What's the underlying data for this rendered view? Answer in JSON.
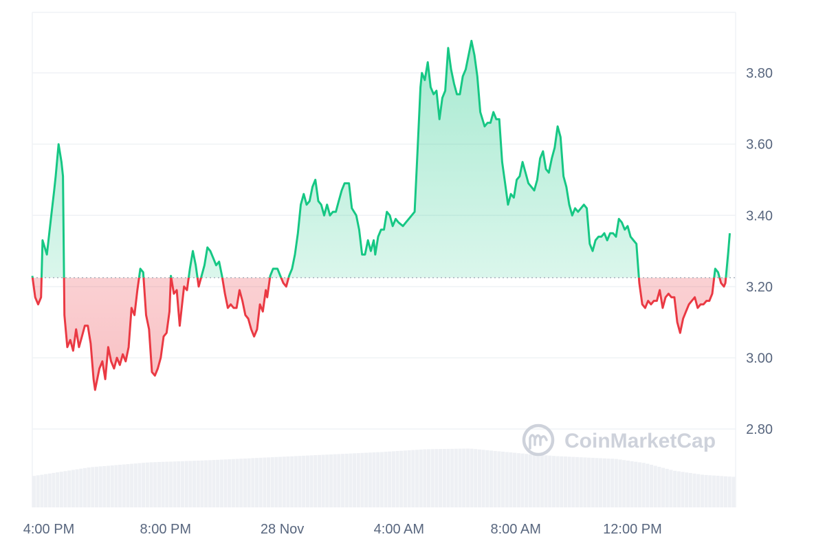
{
  "watermark": "CoinMarketCap",
  "colors": {
    "up": "#16c784",
    "down": "#ea3943",
    "grid": "#eff2f5",
    "label": "#58667e",
    "volume": "#eef0f4",
    "baseline": "#9aa3b1"
  },
  "chart_data": {
    "type": "line",
    "title": "",
    "xlabel": "",
    "ylabel": "",
    "ylim": [
      2.58,
      3.97
    ],
    "y_ticks": [
      2.8,
      3.0,
      3.2,
      3.4,
      3.6,
      3.8
    ],
    "y_tick_labels": [
      "2.80",
      "3.00",
      "3.20",
      "3.40",
      "3.60",
      "3.80"
    ],
    "x_ticks": [
      {
        "label": "4:00 PM",
        "hour": 0
      },
      {
        "label": "8:00 PM",
        "hour": 4
      },
      {
        "label": "28 Nov",
        "hour": 8
      },
      {
        "label": "4:00 AM",
        "hour": 12
      },
      {
        "label": "8:00 AM",
        "hour": 16
      },
      {
        "label": "12:00 PM",
        "hour": 20
      }
    ],
    "x_unit": "hours after 4:00 PM",
    "xlim": [
      0,
      24.1
    ],
    "baseline": 3.225,
    "grid": true,
    "legend": "none",
    "price": [
      [
        0.0,
        3.23
      ],
      [
        0.1,
        3.17
      ],
      [
        0.2,
        3.15
      ],
      [
        0.3,
        3.17
      ],
      [
        0.35,
        3.33
      ],
      [
        0.5,
        3.29
      ],
      [
        0.65,
        3.4
      ],
      [
        0.75,
        3.47
      ],
      [
        0.8,
        3.51
      ],
      [
        0.9,
        3.6
      ],
      [
        1.0,
        3.55
      ],
      [
        1.05,
        3.51
      ],
      [
        1.1,
        3.12
      ],
      [
        1.2,
        3.03
      ],
      [
        1.3,
        3.05
      ],
      [
        1.4,
        3.02
      ],
      [
        1.5,
        3.08
      ],
      [
        1.6,
        3.03
      ],
      [
        1.7,
        3.06
      ],
      [
        1.8,
        3.09
      ],
      [
        1.9,
        3.09
      ],
      [
        2.0,
        3.04
      ],
      [
        2.1,
        2.94
      ],
      [
        2.15,
        2.91
      ],
      [
        2.3,
        2.97
      ],
      [
        2.4,
        2.99
      ],
      [
        2.5,
        2.94
      ],
      [
        2.6,
        3.03
      ],
      [
        2.7,
        2.99
      ],
      [
        2.8,
        2.97
      ],
      [
        2.9,
        3.0
      ],
      [
        3.0,
        2.98
      ],
      [
        3.1,
        3.01
      ],
      [
        3.2,
        2.99
      ],
      [
        3.3,
        3.03
      ],
      [
        3.4,
        3.14
      ],
      [
        3.5,
        3.12
      ],
      [
        3.6,
        3.19
      ],
      [
        3.7,
        3.25
      ],
      [
        3.8,
        3.24
      ],
      [
        3.9,
        3.12
      ],
      [
        4.0,
        3.08
      ],
      [
        4.1,
        2.96
      ],
      [
        4.2,
        2.95
      ],
      [
        4.3,
        2.97
      ],
      [
        4.4,
        3.0
      ],
      [
        4.5,
        3.06
      ],
      [
        4.6,
        3.07
      ],
      [
        4.7,
        3.13
      ],
      [
        4.75,
        3.23
      ],
      [
        4.85,
        3.18
      ],
      [
        4.95,
        3.19
      ],
      [
        5.05,
        3.09
      ],
      [
        5.2,
        3.2
      ],
      [
        5.3,
        3.19
      ],
      [
        5.4,
        3.25
      ],
      [
        5.5,
        3.3
      ],
      [
        5.6,
        3.26
      ],
      [
        5.7,
        3.2
      ],
      [
        5.8,
        3.23
      ],
      [
        5.9,
        3.26
      ],
      [
        6.0,
        3.31
      ],
      [
        6.1,
        3.3
      ],
      [
        6.2,
        3.28
      ],
      [
        6.3,
        3.26
      ],
      [
        6.4,
        3.27
      ],
      [
        6.5,
        3.23
      ],
      [
        6.6,
        3.18
      ],
      [
        6.7,
        3.14
      ],
      [
        6.8,
        3.15
      ],
      [
        6.9,
        3.14
      ],
      [
        7.0,
        3.14
      ],
      [
        7.1,
        3.19
      ],
      [
        7.2,
        3.16
      ],
      [
        7.3,
        3.12
      ],
      [
        7.4,
        3.11
      ],
      [
        7.5,
        3.08
      ],
      [
        7.6,
        3.06
      ],
      [
        7.7,
        3.08
      ],
      [
        7.8,
        3.15
      ],
      [
        7.9,
        3.13
      ],
      [
        8.0,
        3.19
      ],
      [
        8.05,
        3.17
      ],
      [
        8.15,
        3.23
      ],
      [
        8.25,
        3.25
      ],
      [
        8.4,
        3.25
      ],
      [
        8.5,
        3.23
      ],
      [
        8.6,
        3.21
      ],
      [
        8.7,
        3.2
      ],
      [
        8.8,
        3.23
      ],
      [
        8.9,
        3.25
      ],
      [
        9.0,
        3.29
      ],
      [
        9.1,
        3.35
      ],
      [
        9.2,
        3.43
      ],
      [
        9.3,
        3.46
      ],
      [
        9.4,
        3.43
      ],
      [
        9.5,
        3.44
      ],
      [
        9.6,
        3.48
      ],
      [
        9.7,
        3.5
      ],
      [
        9.8,
        3.44
      ],
      [
        9.9,
        3.43
      ],
      [
        10.0,
        3.4
      ],
      [
        10.1,
        3.43
      ],
      [
        10.2,
        3.4
      ],
      [
        10.3,
        3.41
      ],
      [
        10.4,
        3.41
      ],
      [
        10.5,
        3.44
      ],
      [
        10.6,
        3.47
      ],
      [
        10.7,
        3.49
      ],
      [
        10.85,
        3.49
      ],
      [
        10.95,
        3.42
      ],
      [
        11.1,
        3.4
      ],
      [
        11.2,
        3.36
      ],
      [
        11.3,
        3.29
      ],
      [
        11.4,
        3.29
      ],
      [
        11.5,
        3.33
      ],
      [
        11.6,
        3.3
      ],
      [
        11.7,
        3.33
      ],
      [
        11.75,
        3.29
      ],
      [
        11.85,
        3.34
      ],
      [
        11.95,
        3.36
      ],
      [
        12.05,
        3.36
      ],
      [
        12.15,
        3.41
      ],
      [
        12.25,
        3.4
      ],
      [
        12.35,
        3.37
      ],
      [
        12.45,
        3.39
      ],
      [
        12.55,
        3.38
      ],
      [
        12.7,
        3.37
      ],
      [
        12.8,
        3.38
      ],
      [
        12.9,
        3.39
      ],
      [
        13.0,
        3.4
      ],
      [
        13.1,
        3.41
      ],
      [
        13.2,
        3.58
      ],
      [
        13.3,
        3.76
      ],
      [
        13.35,
        3.8
      ],
      [
        13.45,
        3.78
      ],
      [
        13.55,
        3.83
      ],
      [
        13.65,
        3.76
      ],
      [
        13.75,
        3.74
      ],
      [
        13.85,
        3.75
      ],
      [
        13.95,
        3.67
      ],
      [
        14.05,
        3.73
      ],
      [
        14.15,
        3.75
      ],
      [
        14.25,
        3.87
      ],
      [
        14.35,
        3.81
      ],
      [
        14.45,
        3.77
      ],
      [
        14.55,
        3.74
      ],
      [
        14.65,
        3.74
      ],
      [
        14.75,
        3.79
      ],
      [
        14.85,
        3.81
      ],
      [
        14.95,
        3.85
      ],
      [
        15.05,
        3.89
      ],
      [
        15.15,
        3.85
      ],
      [
        15.25,
        3.79
      ],
      [
        15.35,
        3.69
      ],
      [
        15.5,
        3.65
      ],
      [
        15.6,
        3.66
      ],
      [
        15.7,
        3.66
      ],
      [
        15.8,
        3.69
      ],
      [
        15.9,
        3.67
      ],
      [
        16.0,
        3.67
      ],
      [
        16.1,
        3.55
      ],
      [
        16.2,
        3.49
      ],
      [
        16.3,
        3.43
      ],
      [
        16.4,
        3.46
      ],
      [
        16.5,
        3.45
      ],
      [
        16.6,
        3.5
      ],
      [
        16.7,
        3.51
      ],
      [
        16.8,
        3.55
      ],
      [
        16.9,
        3.52
      ],
      [
        17.0,
        3.49
      ],
      [
        17.1,
        3.48
      ],
      [
        17.2,
        3.47
      ],
      [
        17.3,
        3.5
      ],
      [
        17.4,
        3.56
      ],
      [
        17.5,
        3.58
      ],
      [
        17.6,
        3.53
      ],
      [
        17.7,
        3.52
      ],
      [
        17.8,
        3.56
      ],
      [
        17.9,
        3.59
      ],
      [
        18.0,
        3.65
      ],
      [
        18.1,
        3.62
      ],
      [
        18.2,
        3.51
      ],
      [
        18.3,
        3.48
      ],
      [
        18.4,
        3.43
      ],
      [
        18.5,
        3.4
      ],
      [
        18.6,
        3.42
      ],
      [
        18.7,
        3.41
      ],
      [
        18.8,
        3.42
      ],
      [
        18.9,
        3.43
      ],
      [
        19.0,
        3.42
      ],
      [
        19.1,
        3.32
      ],
      [
        19.2,
        3.3
      ],
      [
        19.3,
        3.33
      ],
      [
        19.4,
        3.34
      ],
      [
        19.5,
        3.34
      ],
      [
        19.6,
        3.35
      ],
      [
        19.7,
        3.33
      ],
      [
        19.8,
        3.35
      ],
      [
        19.9,
        3.35
      ],
      [
        20.0,
        3.34
      ],
      [
        20.1,
        3.39
      ],
      [
        20.2,
        3.38
      ],
      [
        20.3,
        3.36
      ],
      [
        20.4,
        3.37
      ],
      [
        20.5,
        3.34
      ],
      [
        20.6,
        3.33
      ],
      [
        20.7,
        3.32
      ],
      [
        20.8,
        3.21
      ],
      [
        20.9,
        3.15
      ],
      [
        21.0,
        3.14
      ],
      [
        21.1,
        3.16
      ],
      [
        21.2,
        3.15
      ],
      [
        21.3,
        3.16
      ],
      [
        21.4,
        3.16
      ],
      [
        21.5,
        3.19
      ],
      [
        21.6,
        3.14
      ],
      [
        21.7,
        3.17
      ],
      [
        21.8,
        3.18
      ],
      [
        21.9,
        3.17
      ],
      [
        22.0,
        3.17
      ],
      [
        22.1,
        3.1
      ],
      [
        22.2,
        3.07
      ],
      [
        22.3,
        3.11
      ],
      [
        22.4,
        3.13
      ],
      [
        22.5,
        3.15
      ],
      [
        22.6,
        3.16
      ],
      [
        22.7,
        3.17
      ],
      [
        22.8,
        3.14
      ],
      [
        22.9,
        3.15
      ],
      [
        23.0,
        3.15
      ],
      [
        23.1,
        3.16
      ],
      [
        23.2,
        3.16
      ],
      [
        23.3,
        3.18
      ],
      [
        23.4,
        3.25
      ],
      [
        23.5,
        3.24
      ],
      [
        23.6,
        3.21
      ],
      [
        23.7,
        3.2
      ],
      [
        23.75,
        3.21
      ],
      [
        23.85,
        3.3
      ],
      [
        23.9,
        3.35
      ]
    ],
    "volume": [
      [
        0.0,
        0.45
      ],
      [
        2.0,
        0.58
      ],
      [
        4.0,
        0.65
      ],
      [
        6.0,
        0.68
      ],
      [
        8.0,
        0.72
      ],
      [
        10.0,
        0.76
      ],
      [
        12.0,
        0.8
      ],
      [
        13.5,
        0.84
      ],
      [
        15.0,
        0.85
      ],
      [
        16.0,
        0.81
      ],
      [
        17.0,
        0.77
      ],
      [
        18.0,
        0.74
      ],
      [
        19.0,
        0.72
      ],
      [
        20.0,
        0.7
      ],
      [
        21.0,
        0.64
      ],
      [
        22.0,
        0.53
      ],
      [
        23.0,
        0.47
      ],
      [
        24.1,
        0.44
      ]
    ]
  }
}
